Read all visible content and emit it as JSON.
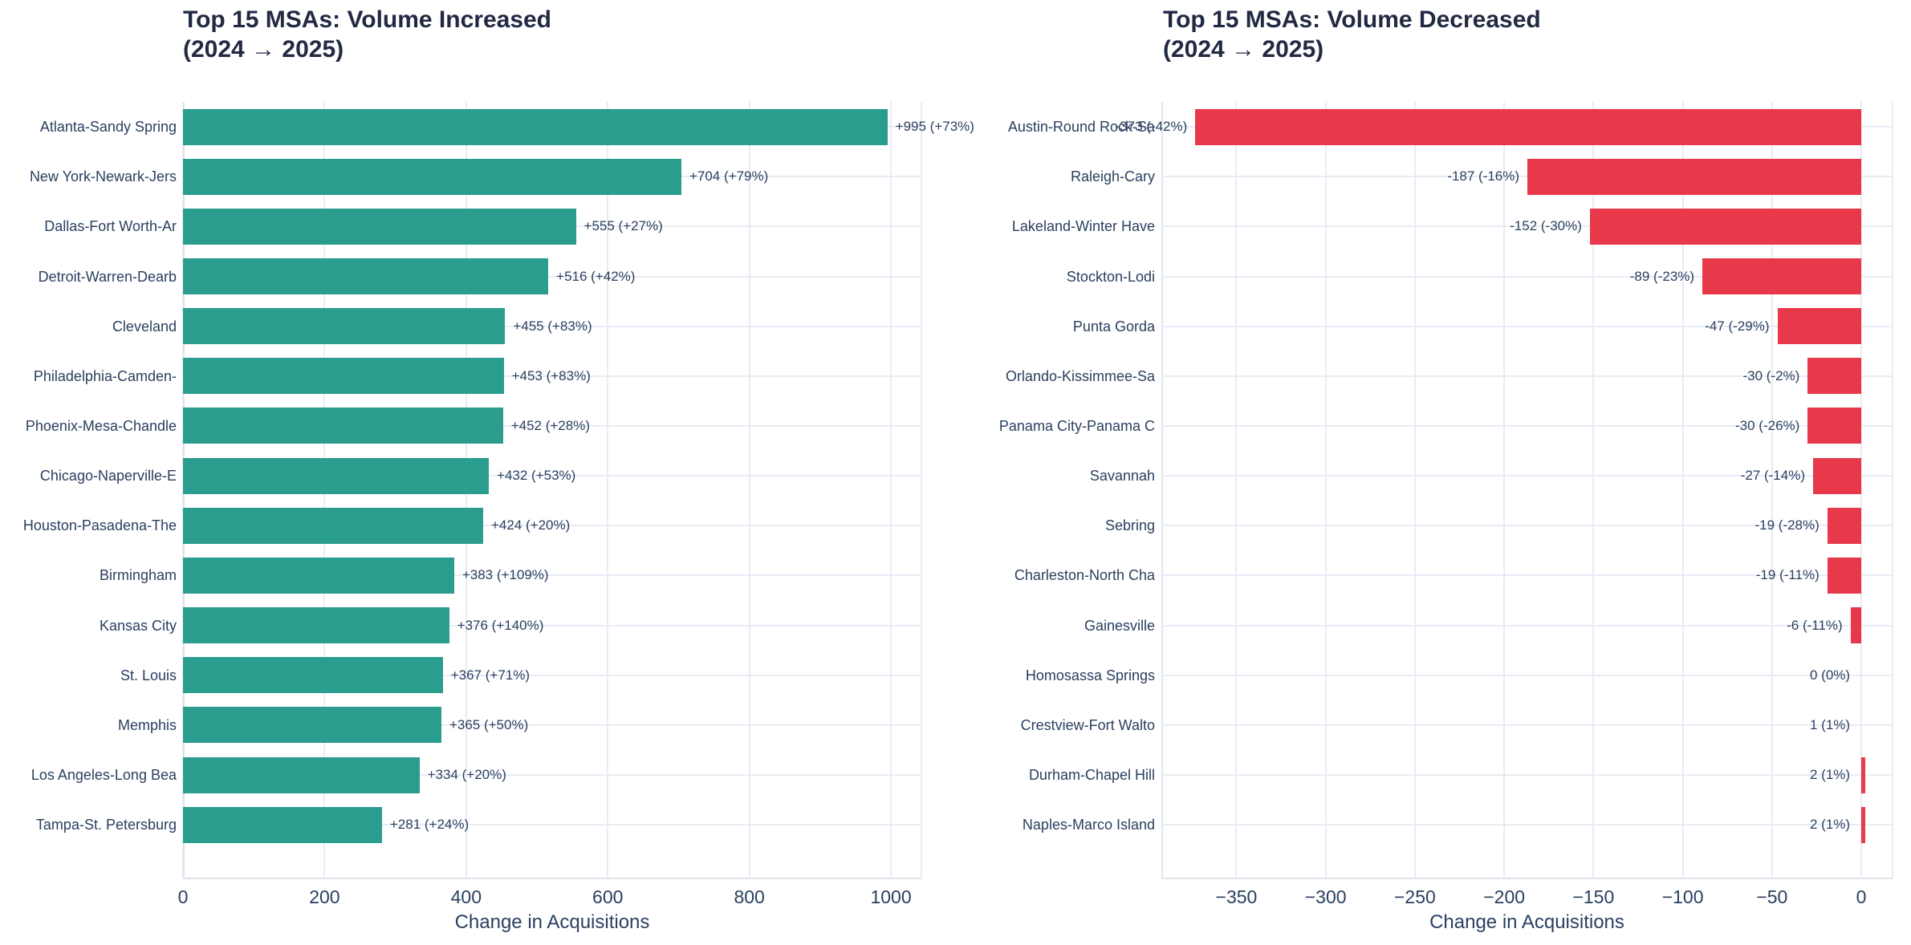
{
  "figure": {
    "background": "#ffffff",
    "x_axis_title": "Change in Acquisitions"
  },
  "palette": {
    "increase_bar": "#2a9d8f",
    "decrease_bar": "#e8394a",
    "grid_line": "#e9ecf5",
    "axis_line": "#dfe3ec",
    "tick_text": "#2a3f5f",
    "label_text": "#2a3f5f",
    "title_text": "#222943"
  },
  "chart_data": [
    {
      "type": "bar",
      "orientation": "horizontal",
      "title": "Top 15 MSAs: Volume Increased",
      "title_line2": "(2024 → 2025)",
      "xlabel": "Change in Acquisitions",
      "legend": "none",
      "grid": "on",
      "bar_color": "#2a9d8f",
      "categories": [
        "Atlanta-Sandy Spring",
        "New York-Newark-Jers",
        "Dallas-Fort Worth-Ar",
        "Detroit-Warren-Dearb",
        "Cleveland",
        "Philadelphia-Camden-",
        "Phoenix-Mesa-Chandle",
        "Chicago-Naperville-E",
        "Houston-Pasadena-The",
        "Birmingham",
        "Kansas City",
        "St. Louis",
        "Memphis",
        "Los Angeles-Long Bea",
        "Tampa-St. Petersburg"
      ],
      "values": [
        995,
        704,
        555,
        516,
        455,
        453,
        452,
        432,
        424,
        383,
        376,
        367,
        365,
        334,
        281
      ],
      "bar_labels": [
        "+995 (+73%)",
        "+704 (+79%)",
        "+555 (+27%)",
        "+516 (+42%)",
        "+455 (+83%)",
        "+453 (+83%)",
        "+452 (+28%)",
        "+432 (+53%)",
        "+424 (+20%)",
        "+383 (+109%)",
        "+376 (+140%)",
        "+367 (+71%)",
        "+365 (+50%)",
        "+334 (+20%)",
        "+281 (+24%)"
      ],
      "xlim": [
        0,
        1043
      ],
      "xticks": [
        0,
        200,
        400,
        600,
        800,
        1000
      ],
      "xtick_labels": [
        "0",
        "200",
        "400",
        "600",
        "800",
        "1000"
      ]
    },
    {
      "type": "bar",
      "orientation": "horizontal",
      "title": "Top 15 MSAs: Volume Decreased",
      "title_line2": "(2024 → 2025)",
      "xlabel": "Change in Acquisitions",
      "legend": "none",
      "grid": "on",
      "bar_color": "#e8394a",
      "categories": [
        "Austin-Round Rock-Sa",
        "Raleigh-Cary",
        "Lakeland-Winter Have",
        "Stockton-Lodi",
        "Punta Gorda",
        "Orlando-Kissimmee-Sa",
        "Panama City-Panama C",
        "Savannah",
        "Sebring",
        "Charleston-North Cha",
        "Gainesville",
        "Homosassa Springs",
        "Crestview-Fort Walto",
        "Durham-Chapel Hill",
        "Naples-Marco Island"
      ],
      "values": [
        -373,
        -187,
        -152,
        -89,
        -47,
        -30,
        -30,
        -27,
        -19,
        -19,
        -6,
        0,
        1,
        2,
        2
      ],
      "bar_labels": [
        "-373 (-42%)",
        "-187 (-16%)",
        "-152 (-30%)",
        "-89 (-23%)",
        "-47 (-29%)",
        "-30 (-2%)",
        "-30 (-26%)",
        "-27 (-14%)",
        "-19 (-28%)",
        "-19 (-11%)",
        "-6 (-11%)",
        "0 (0%)",
        "1 (1%)",
        "2 (1%)",
        "2 (1%)"
      ],
      "xlim": [
        -392,
        17.5
      ],
      "xticks": [
        -350,
        -300,
        -250,
        -200,
        -150,
        -100,
        -50,
        0
      ],
      "xtick_labels": [
        "−350",
        "−300",
        "−250",
        "−200",
        "−150",
        "−100",
        "−50",
        "0"
      ]
    }
  ]
}
